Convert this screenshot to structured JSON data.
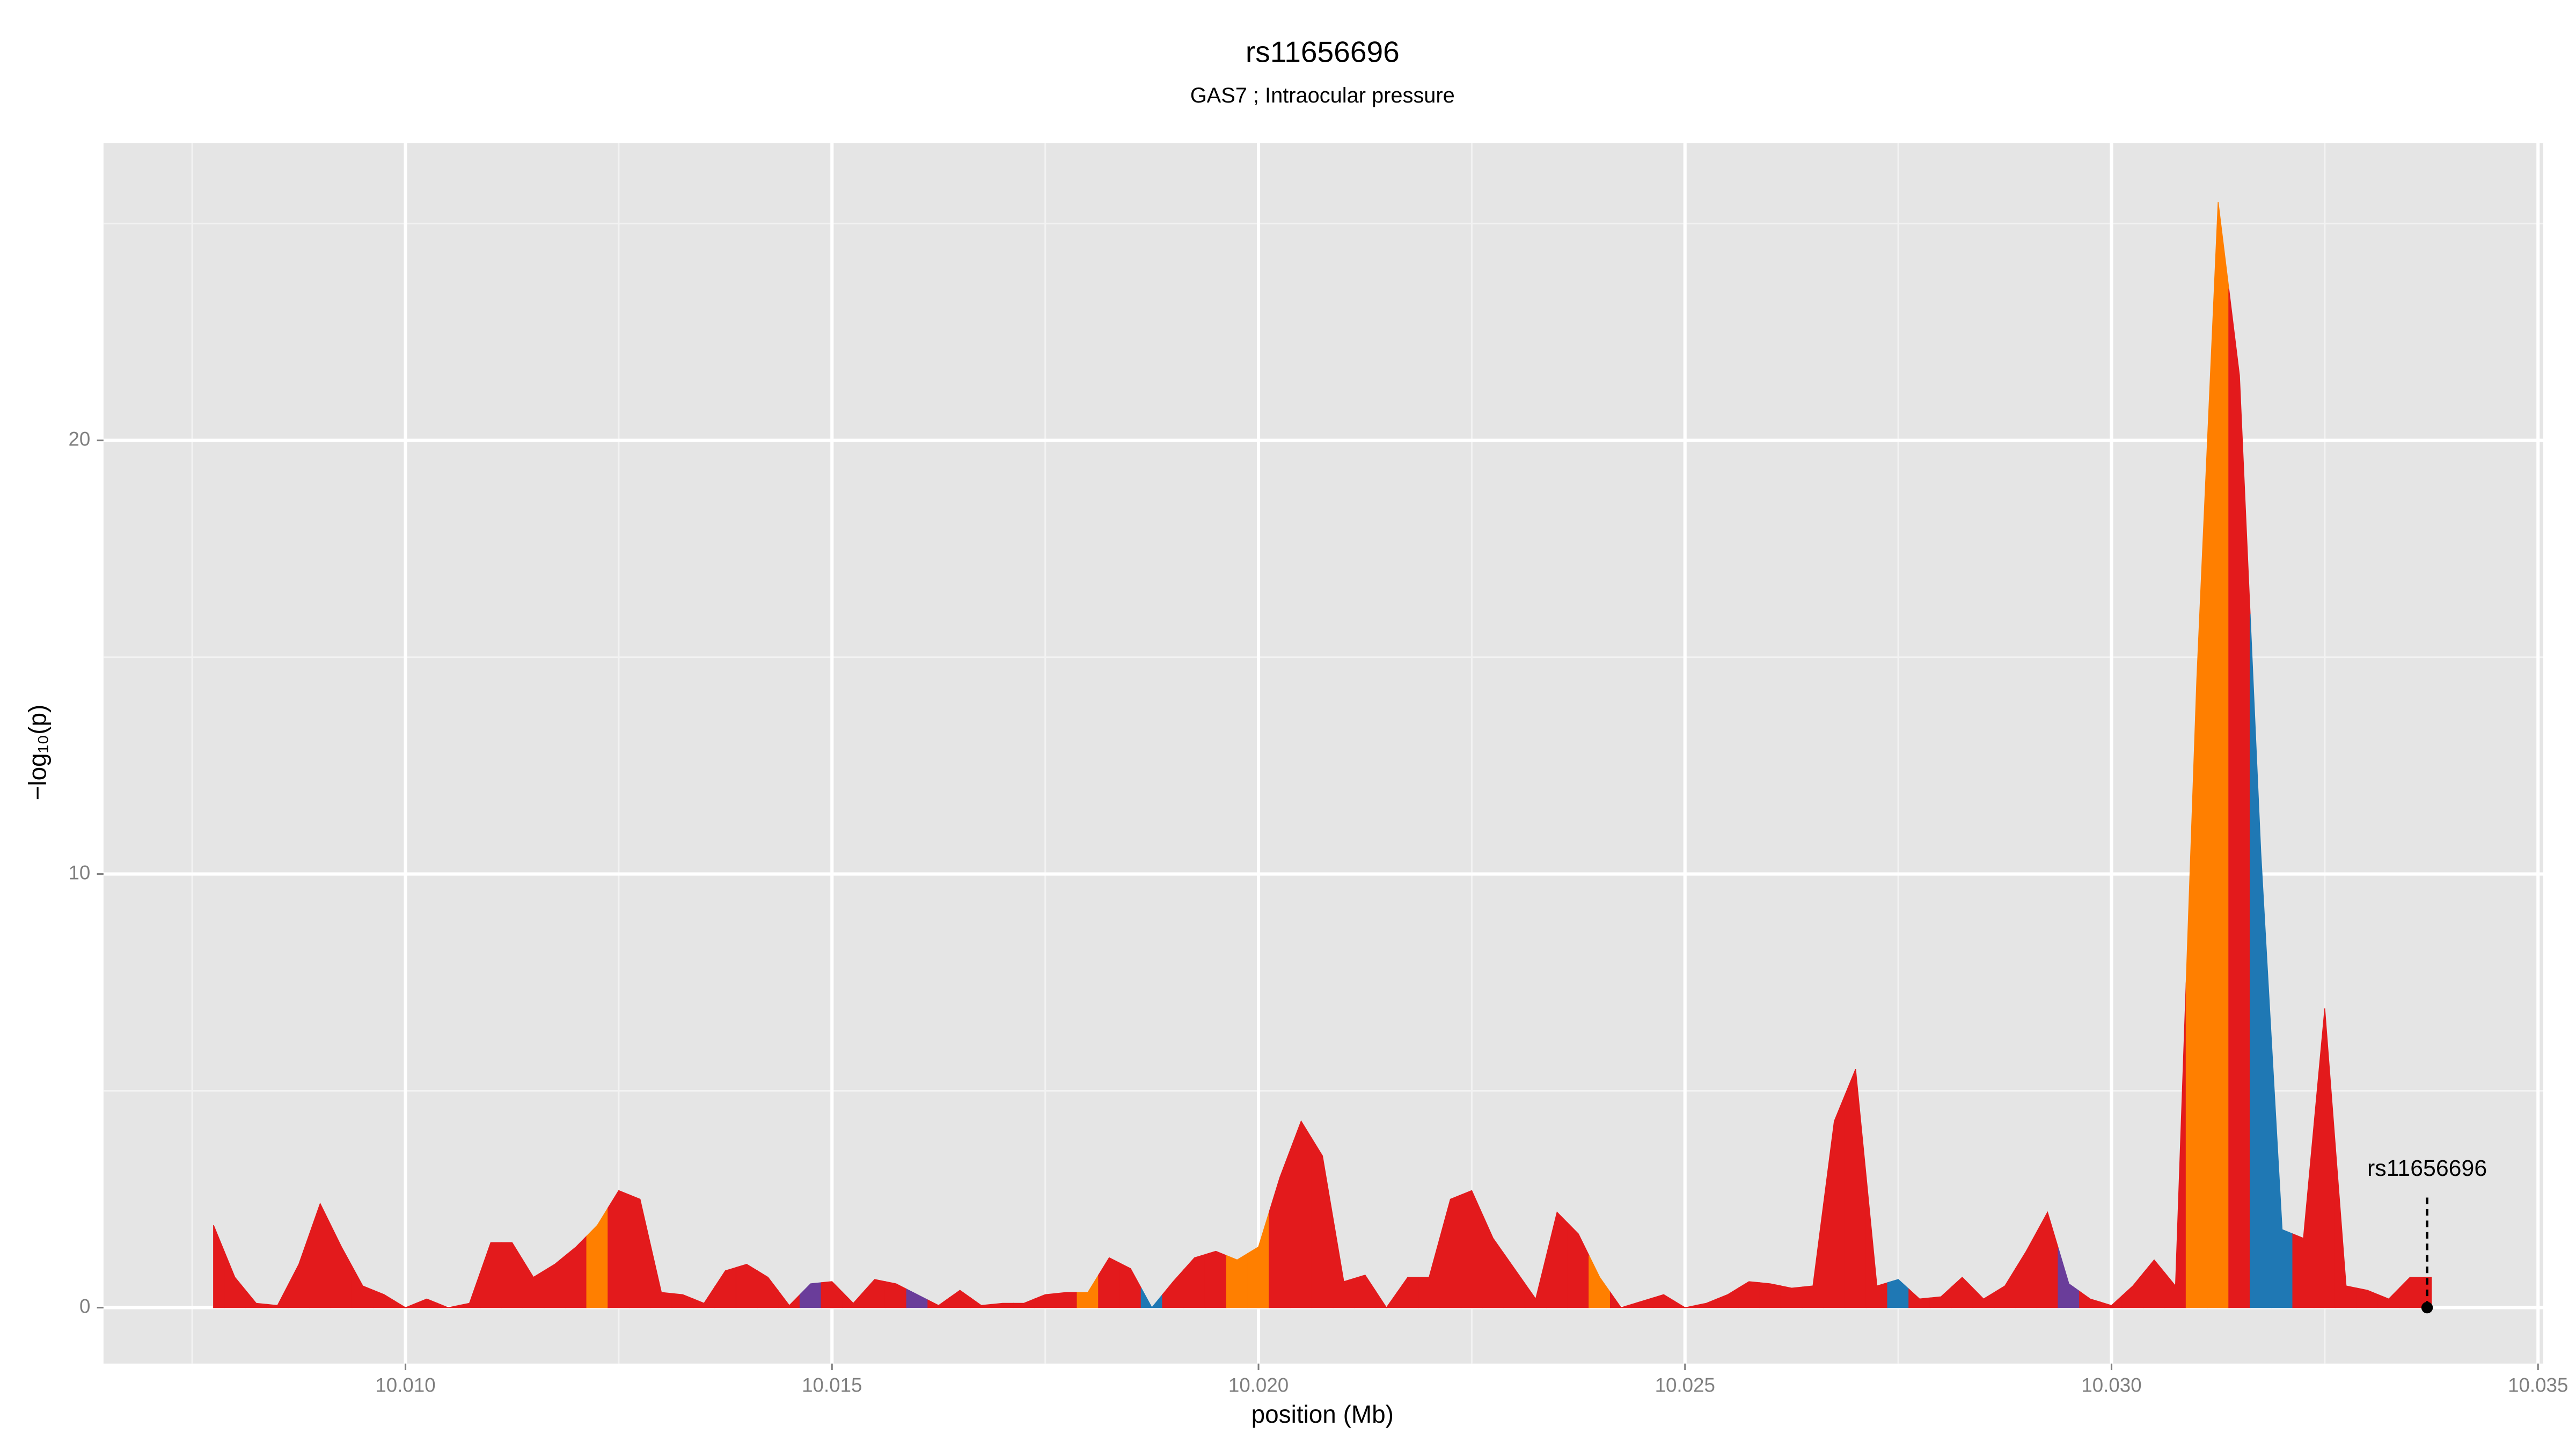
{
  "chart_data": {
    "type": "area",
    "title": "rs11656696",
    "subtitle": "GAS7 ; Intraocular pressure",
    "xlabel": "position (Mb)",
    "ylabel": "−log₁₀(p)",
    "x": [
      10.00775,
      10.008,
      10.00825,
      10.0085,
      10.00875,
      10.009,
      10.00925,
      10.0095,
      10.00975,
      10.01,
      10.01025,
      10.0105,
      10.01075,
      10.011,
      10.01125,
      10.0115,
      10.01175,
      10.012,
      10.01225,
      10.0125,
      10.01275,
      10.013,
      10.01325,
      10.0135,
      10.01375,
      10.014,
      10.01425,
      10.0145,
      10.01475,
      10.015,
      10.01525,
      10.0155,
      10.01575,
      10.016,
      10.01625,
      10.0165,
      10.01675,
      10.017,
      10.01725,
      10.0175,
      10.01775,
      10.018,
      10.01825,
      10.0185,
      10.01875,
      10.019,
      10.01925,
      10.0195,
      10.01975,
      10.02,
      10.02025,
      10.0205,
      10.02075,
      10.021,
      10.02125,
      10.0215,
      10.02175,
      10.022,
      10.02225,
      10.0225,
      10.02275,
      10.023,
      10.02325,
      10.0235,
      10.02375,
      10.024,
      10.02425,
      10.0245,
      10.02475,
      10.025,
      10.02525,
      10.0255,
      10.02575,
      10.026,
      10.02625,
      10.0265,
      10.02675,
      10.027,
      10.02725,
      10.0275,
      10.02775,
      10.028,
      10.02825,
      10.0285,
      10.02875,
      10.029,
      10.02925,
      10.0295,
      10.02975,
      10.03,
      10.03025,
      10.0305,
      10.03075,
      10.031,
      10.03125,
      10.0315,
      10.03175,
      10.032,
      10.03225,
      10.0325,
      10.03275,
      10.033,
      10.03325,
      10.0335,
      10.03375
    ],
    "values": [
      1.9,
      0.7,
      0.1,
      0.05,
      1.0,
      2.4,
      1.4,
      0.5,
      0.3,
      0.0,
      0.2,
      0.0,
      0.1,
      1.5,
      1.5,
      0.7,
      1.0,
      1.4,
      1.9,
      2.7,
      2.5,
      0.35,
      0.3,
      0.1,
      0.85,
      1.0,
      0.7,
      0.05,
      0.55,
      0.6,
      0.1,
      0.65,
      0.55,
      0.3,
      0.05,
      0.4,
      0.05,
      0.1,
      0.1,
      0.3,
      0.35,
      0.35,
      1.15,
      0.9,
      0.0,
      0.6,
      1.15,
      1.3,
      1.1,
      1.4,
      3.0,
      4.3,
      3.5,
      0.6,
      0.75,
      0.0,
      0.7,
      0.7,
      2.5,
      2.7,
      1.6,
      0.9,
      0.2,
      2.2,
      1.7,
      0.7,
      0.0,
      0.15,
      0.3,
      0.0,
      0.1,
      0.3,
      0.6,
      0.55,
      0.45,
      0.5,
      4.3,
      5.5,
      0.5,
      0.65,
      0.2,
      0.25,
      0.7,
      0.2,
      0.5,
      1.3,
      2.2,
      0.55,
      0.2,
      0.05,
      0.5,
      1.1,
      0.5,
      14.5,
      25.5,
      21.5,
      10.5,
      1.8,
      1.6,
      6.9,
      0.5,
      0.4,
      0.2,
      0.7,
      0.7
    ],
    "colors": [
      "#e31a1c",
      "#e31a1c",
      "#e31a1c",
      "#e31a1c",
      "#e31a1c",
      "#e31a1c",
      "#e31a1c",
      "#e31a1c",
      "#e31a1c",
      "#e31a1c",
      "#e31a1c",
      "#e31a1c",
      "#e31a1c",
      "#e31a1c",
      "#e31a1c",
      "#e31a1c",
      "#e31a1c",
      "#e31a1c",
      "#ff7f00",
      "#e31a1c",
      "#e31a1c",
      "#e31a1c",
      "#e31a1c",
      "#e31a1c",
      "#e31a1c",
      "#e31a1c",
      "#e31a1c",
      "#e31a1c",
      "#6a3d9a",
      "#e31a1c",
      "#e31a1c",
      "#e31a1c",
      "#e31a1c",
      "#6a3d9a",
      "#e31a1c",
      "#e31a1c",
      "#e31a1c",
      "#e31a1c",
      "#e31a1c",
      "#e31a1c",
      "#e31a1c",
      "#ff7f00",
      "#e31a1c",
      "#e31a1c",
      "#1f78b4",
      "#e31a1c",
      "#e31a1c",
      "#e31a1c",
      "#ff7f00",
      "#ff7f00",
      "#e31a1c",
      "#e31a1c",
      "#e31a1c",
      "#e31a1c",
      "#e31a1c",
      "#e31a1c",
      "#e31a1c",
      "#e31a1c",
      "#e31a1c",
      "#e31a1c",
      "#e31a1c",
      "#e31a1c",
      "#e31a1c",
      "#e31a1c",
      "#e31a1c",
      "#ff7f00",
      "#e31a1c",
      "#e31a1c",
      "#e31a1c",
      "#e31a1c",
      "#e31a1c",
      "#e31a1c",
      "#e31a1c",
      "#e31a1c",
      "#e31a1c",
      "#e31a1c",
      "#e31a1c",
      "#e31a1c",
      "#e31a1c",
      "#1f78b4",
      "#e31a1c",
      "#e31a1c",
      "#e31a1c",
      "#e31a1c",
      "#e31a1c",
      "#e31a1c",
      "#e31a1c",
      "#6a3d9a",
      "#e31a1c",
      "#e31a1c",
      "#e31a1c",
      "#e31a1c",
      "#e31a1c",
      "#ff7f00",
      "#ff7f00",
      "#e31a1c",
      "#1f78b4",
      "#1f78b4",
      "#e31a1c",
      "#e31a1c",
      "#e31a1c",
      "#e31a1c",
      "#e31a1c",
      "#e31a1c",
      "#e31a1c"
    ],
    "xlim": [
      10.00646,
      10.03506
    ],
    "ylim": [
      -1.29,
      26.86
    ],
    "xticks": [
      {
        "value": 10.01,
        "label": "10.010"
      },
      {
        "value": 10.015,
        "label": "10.015"
      },
      {
        "value": 10.02,
        "label": "10.020"
      },
      {
        "value": 10.025,
        "label": "10.025"
      },
      {
        "value": 10.03,
        "label": "10.030"
      },
      {
        "value": 10.035,
        "label": "10.035"
      }
    ],
    "yticks": [
      0,
      10,
      20
    ],
    "grid": true,
    "annotation": {
      "text": "rs11656696",
      "x": 10.0337,
      "y": 0
    }
  }
}
